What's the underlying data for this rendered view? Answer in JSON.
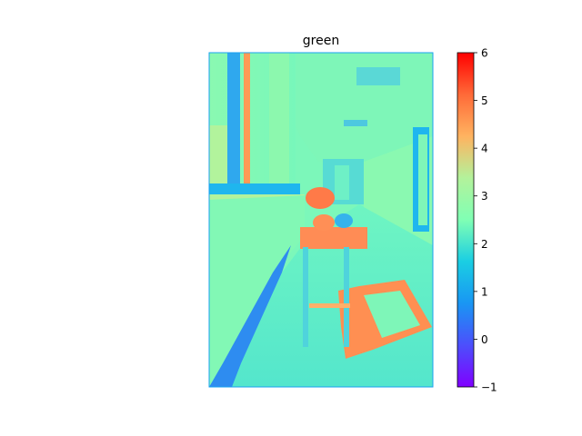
{
  "chart_data": {
    "type": "heatmap",
    "title": "green",
    "colormap": "rainbow",
    "colorbar": {
      "vmin": -1,
      "vmax": 6,
      "ticks": [
        -1,
        0,
        1,
        2,
        3,
        4,
        5,
        6
      ]
    },
    "axes": {
      "visible": false
    },
    "grid": false
  }
}
